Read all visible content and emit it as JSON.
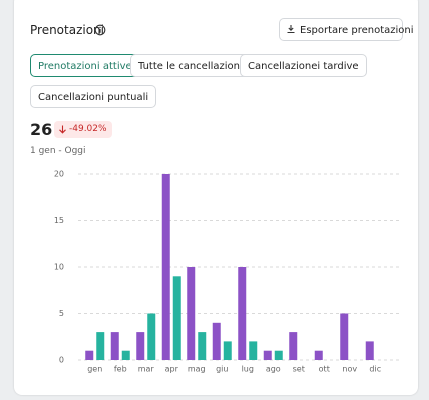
{
  "header": {
    "title": "Prenotazioni",
    "export_button": "Esportare prenotazioni"
  },
  "tabs": [
    "Prenotazioni attive",
    "Tutte le cancellazioni",
    "Cancellazionei tardive",
    "Cancellazioni puntuali"
  ],
  "stat": {
    "value": 26,
    "change": "-49.02%",
    "period": "1 gen - Oggi"
  },
  "chart_data": {
    "type": "bar",
    "categories": [
      "gen",
      "feb",
      "mar",
      "apr",
      "mag",
      "giu",
      "lug",
      "ago",
      "set",
      "ott",
      "nov",
      "dic"
    ],
    "series": [
      {
        "color": "#8c52c6",
        "values": [
          1,
          3,
          3,
          20,
          10,
          4,
          10,
          1,
          3,
          1,
          5,
          2
        ]
      },
      {
        "color": "#26b39f",
        "values": [
          3,
          1,
          5,
          9,
          3,
          2,
          2,
          1,
          0,
          0,
          0,
          0
        ]
      }
    ],
    "ylim": [
      0,
      20
    ],
    "yticks": [
      0,
      5,
      10,
      15,
      20
    ],
    "grid": true
  }
}
